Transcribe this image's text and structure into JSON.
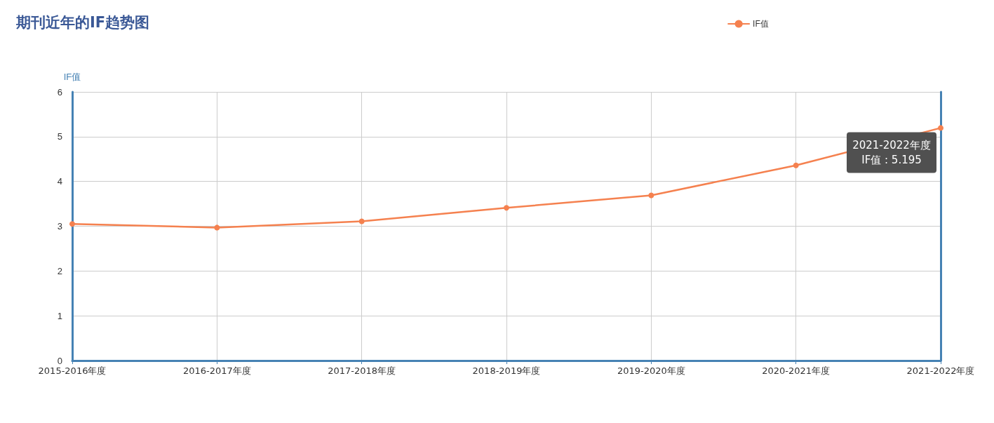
{
  "chart_data": {
    "type": "line",
    "title": "期刊近年的IF趋势图",
    "ylabel": "IF值",
    "categories": [
      "2015-2016年度",
      "2016-2017年度",
      "2017-2018年度",
      "2018-2019年度",
      "2019-2020年度",
      "2020-2021年度",
      "2021-2022年度"
    ],
    "series": [
      {
        "name": "IF值",
        "color": "#f5814f",
        "values": [
          3.05,
          2.97,
          3.11,
          3.41,
          3.69,
          4.36,
          5.195
        ]
      }
    ],
    "ylim": [
      0,
      6
    ],
    "yticks": [
      0,
      1,
      2,
      3,
      4,
      5,
      6
    ],
    "grid": true,
    "legend": "top right",
    "marker": "circle",
    "line_style": "solid",
    "annotations": [
      {
        "text": "2021-2022年度\nIF值 : 5.195",
        "x": "2021-2022年度",
        "y": 5.195
      }
    ]
  }
}
